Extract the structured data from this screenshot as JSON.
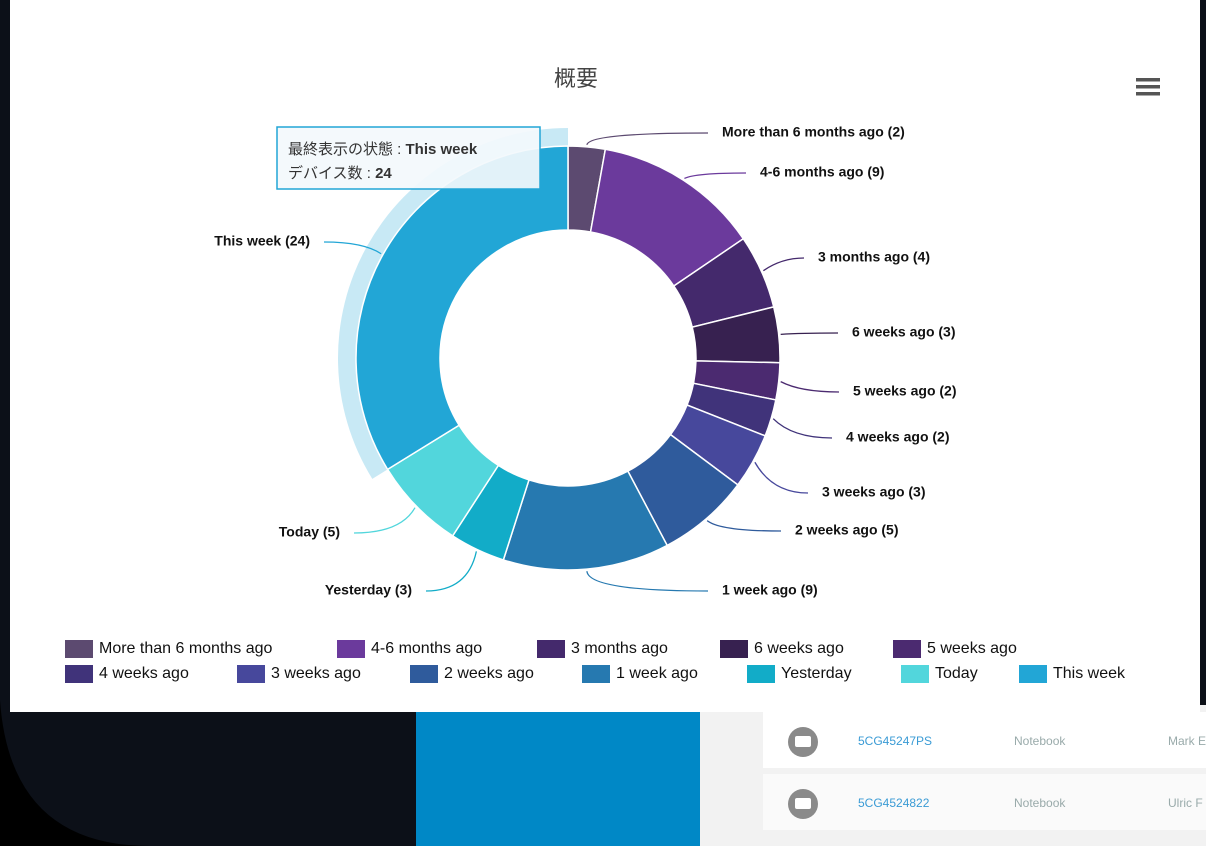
{
  "chart_data": {
    "type": "donut",
    "title": "概要",
    "categories": [
      "More than 6 months ago",
      "4-6 months ago",
      "3 months ago",
      "6 weeks ago",
      "5 weeks ago",
      "4 weeks ago",
      "3 weeks ago",
      "2 weeks ago",
      "1 week ago",
      "Yesterday",
      "Today",
      "This week"
    ],
    "values": [
      2,
      9,
      4,
      3,
      2,
      2,
      3,
      5,
      9,
      3,
      5,
      24
    ],
    "value_labels": [
      "More than 6 months ago (2)",
      "4-6 months ago (9)",
      "3 months ago (4)",
      "6 weeks ago (3)",
      "5 weeks ago (2)",
      "4 weeks ago (2)",
      "3 weeks ago (3)",
      "2 weeks ago (5)",
      "1 week ago (9)",
      "Yesterday (3)",
      "Today (5)",
      "This week (24)"
    ],
    "colors": [
      "#5c4a70",
      "#6b3a9c",
      "#44296c",
      "#372150",
      "#4b2a70",
      "#40337a",
      "#47489c",
      "#2f5b9c",
      "#2679b0",
      "#12acc8",
      "#52d6dc",
      "#22a6d6"
    ],
    "legend": "bottom",
    "tooltip": {
      "state_label": "最終表示の状態 : ",
      "state": "This week",
      "count_label": "デバイス数 : ",
      "count": 24
    }
  },
  "table": {
    "rows": [
      [
        "5CG45247PS",
        "Notebook",
        "Mark E"
      ],
      [
        "5CG4524822",
        "Notebook",
        "Ulric F"
      ]
    ]
  }
}
